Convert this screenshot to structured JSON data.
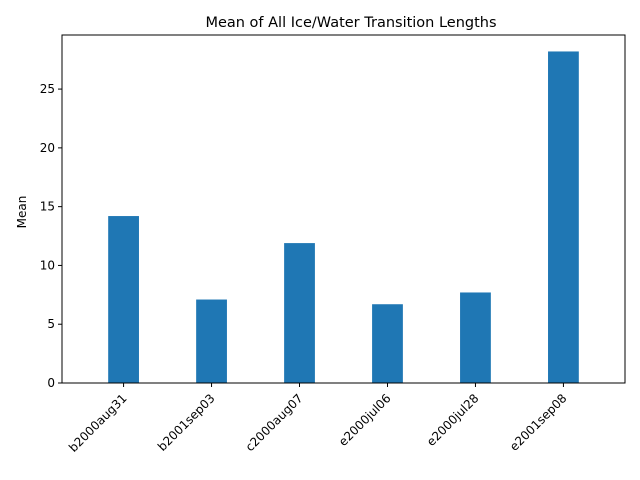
{
  "chart_data": {
    "type": "bar",
    "title": "Mean of All Ice/Water Transition Lengths",
    "xlabel": "",
    "ylabel": "Mean",
    "categories": [
      "b2000aug31",
      "b2001sep03",
      "c2000aug07",
      "e2000jul06",
      "e2000jul28",
      "e2001sep08"
    ],
    "values": [
      14.2,
      7.1,
      11.9,
      6.7,
      7.7,
      28.2
    ],
    "ylim": [
      0,
      29.6
    ],
    "yticks": [
      0,
      5,
      10,
      15,
      20,
      25
    ],
    "bar_color": "#1f77b4",
    "grid": false,
    "legend": "none"
  }
}
